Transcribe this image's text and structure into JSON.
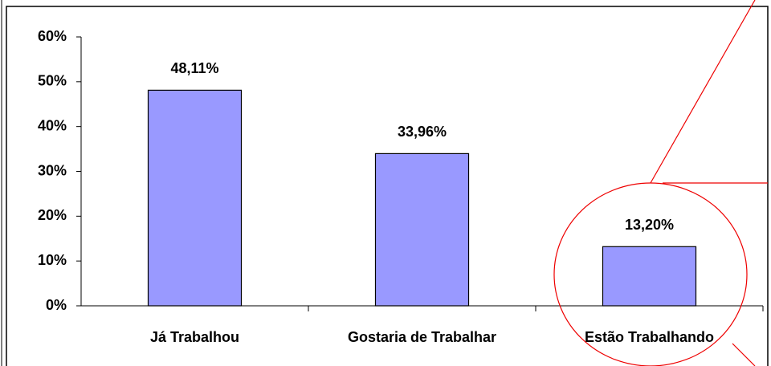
{
  "chart_data": {
    "type": "bar",
    "categories": [
      "Já Trabalhou",
      "Gostaria de Trabalhar",
      "Estão Trabalhando"
    ],
    "values": [
      48.11,
      33.96,
      13.2
    ],
    "value_labels": [
      "48,11%",
      "33,96%",
      "13,20%"
    ],
    "color": "#9999ff",
    "ylim": [
      0,
      60
    ],
    "yticks": [
      {
        "value": 0,
        "label": "0%"
      },
      {
        "value": 10,
        "label": "10%"
      },
      {
        "value": 20,
        "label": "20%"
      },
      {
        "value": 30,
        "label": "30%"
      },
      {
        "value": 40,
        "label": "40%"
      },
      {
        "value": 50,
        "label": "50%"
      },
      {
        "value": 60,
        "label": "60%"
      }
    ],
    "grid": false
  }
}
